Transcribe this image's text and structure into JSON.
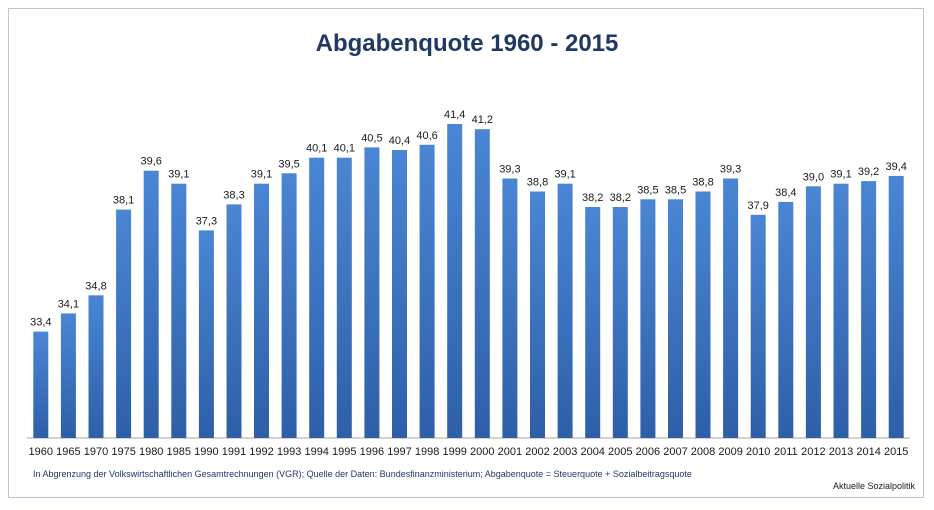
{
  "chart_data": {
    "type": "bar",
    "title": "Abgabenquote 1960 - 2015",
    "xlabel": "",
    "ylabel": "",
    "ylim": [
      30,
      42
    ],
    "grid": false,
    "legend": "none",
    "categories": [
      "1960",
      "1965",
      "1970",
      "1975",
      "1980",
      "1985",
      "1990",
      "1991",
      "1992",
      "1993",
      "1994",
      "1995",
      "1996",
      "1997",
      "1998",
      "1999",
      "2000",
      "2001",
      "2002",
      "2003",
      "2004",
      "2005",
      "2006",
      "2007",
      "2008",
      "2009",
      "2010",
      "2011",
      "2012",
      "2013",
      "2014",
      "2015"
    ],
    "values": [
      33.4,
      34.1,
      34.8,
      38.1,
      39.6,
      39.1,
      37.3,
      38.3,
      39.1,
      39.5,
      40.1,
      40.1,
      40.5,
      40.4,
      40.6,
      41.4,
      41.2,
      39.3,
      38.8,
      39.1,
      38.2,
      38.2,
      38.5,
      38.5,
      38.8,
      39.3,
      37.9,
      38.4,
      39.0,
      39.1,
      39.2,
      39.4
    ],
    "data_labels": [
      "33,4",
      "34,1",
      "34,8",
      "38,1",
      "39,6",
      "39,1",
      "37,3",
      "38,3",
      "39,1",
      "39,5",
      "40,1",
      "40,1",
      "40,5",
      "40,4",
      "40,6",
      "41,4",
      "41,2",
      "39,3",
      "38,8",
      "39,1",
      "38,2",
      "38,2",
      "38,5",
      "38,5",
      "38,8",
      "39,3",
      "37,9",
      "38,4",
      "39,0",
      "39,1",
      "39,2",
      "39,4"
    ],
    "bar_color_top": "#4a86d4",
    "bar_color_bottom": "#2e5fa8",
    "title_color": "#1f3864"
  },
  "footnote": "In Abgrenzung der Volkswirtschaftlichen Gesamtrechnungen (VGR); Quelle der Daten: Bundesfinanzministerium; Abgabenquote = Steuerquote + Sozialbeitragsquote",
  "credit": "Aktuelle Sozialpolitik"
}
